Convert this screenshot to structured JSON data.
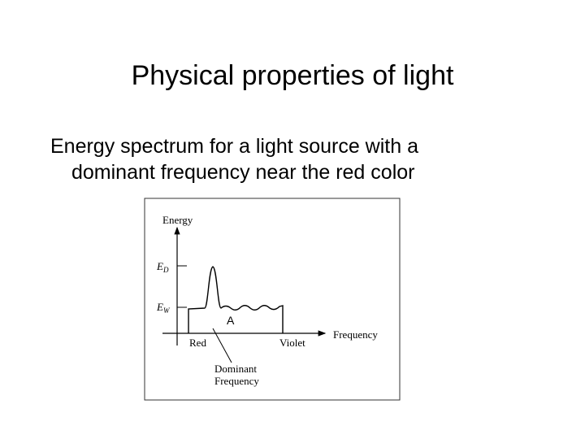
{
  "slide": {
    "title": "Physical properties of light",
    "bullet": "Energy spectrum for a light source with a dominant frequency near the red color",
    "figure": {
      "y_axis_label": "Energy",
      "x_axis_label": "Frequency",
      "level_d": {
        "symbol": "E",
        "subscript": "D"
      },
      "level_w": {
        "symbol": "E",
        "subscript": "W"
      },
      "region_label": "A",
      "low_end_label": "Red",
      "high_end_label": "Violet",
      "pointer_label": [
        "Dominant",
        "Frequency"
      ]
    }
  }
}
